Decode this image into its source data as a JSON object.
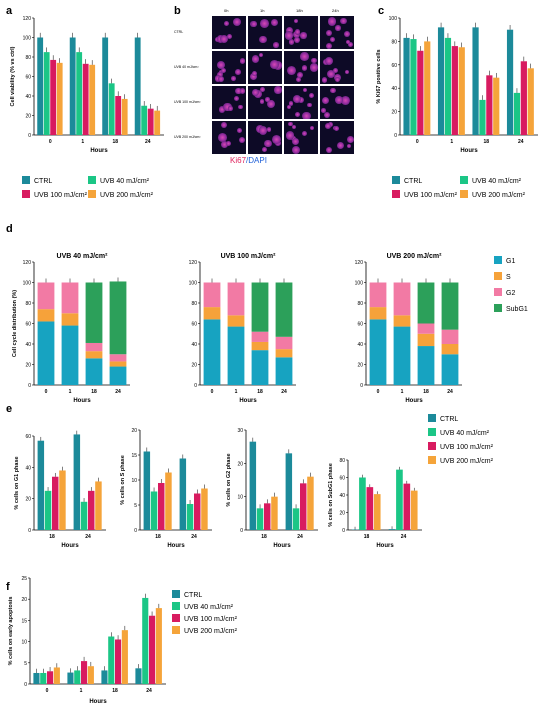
{
  "colors": {
    "ctrl": "#1c8a9a",
    "uvb40": "#1bc686",
    "uvb100": "#d81b60",
    "uvb200": "#f5a43a",
    "g1": "#17a3c1",
    "s": "#f6a23a",
    "g2": "#f27aa4",
    "subg1": "#2ca05a"
  },
  "legend_ctrl_uvb": [
    "CTRL",
    "UVB 40 mJ/cm²",
    "UVB 100 mJ/cm²",
    "UVB 200 mJ/cm²"
  ],
  "panel_labels": {
    "a": "a",
    "b": "b",
    "c": "c",
    "d": "d",
    "e": "e",
    "f": "f"
  },
  "panel_b": {
    "time_labels": [
      "0h",
      "1h",
      "18h",
      "24h"
    ],
    "row_labels": [
      "CTRL",
      "UVB 40 mJ/cm²",
      "UVB 100 mJ/cm²",
      "UVB 200 mJ/cm²"
    ],
    "stain_ki67": "Ki67",
    "stain_dapi": "/DAPI"
  },
  "chart_data": [
    {
      "id": "a",
      "type": "bar",
      "ylabel": "Cell viability (% vs ctrl)",
      "xlabel": "Hours",
      "categories": [
        "0",
        "1",
        "18",
        "24"
      ],
      "ylim": [
        0,
        120
      ],
      "yticks": [
        0,
        20,
        40,
        60,
        80,
        100,
        120
      ],
      "series": [
        {
          "name": "CTRL",
          "values": [
            100,
            100,
            100,
            100
          ]
        },
        {
          "name": "UVB 40 mJ/cm²",
          "values": [
            85,
            85,
            53,
            30
          ]
        },
        {
          "name": "UVB 100 mJ/cm²",
          "values": [
            77,
            73,
            40,
            27
          ]
        },
        {
          "name": "UVB 200 mJ/cm²",
          "values": [
            74,
            72,
            37,
            25
          ]
        }
      ],
      "annotations": [
        "**",
        "**",
        "*",
        "**",
        "**",
        "***",
        "***",
        "***",
        "***",
        "***",
        "***",
        "***",
        "***",
        "°°"
      ]
    },
    {
      "id": "c",
      "type": "bar",
      "ylabel": "% Ki67 positive cells",
      "xlabel": "Hours",
      "categories": [
        "0",
        "1",
        "18",
        "24"
      ],
      "ylim": [
        0,
        100
      ],
      "yticks": [
        0,
        20,
        40,
        60,
        80,
        100
      ],
      "series": [
        {
          "name": "CTRL",
          "values": [
            83,
            92,
            92,
            90
          ]
        },
        {
          "name": "UVB 40 mJ/cm²",
          "values": [
            82,
            83,
            30,
            36
          ]
        },
        {
          "name": "UVB 100 mJ/cm²",
          "values": [
            72,
            76,
            51,
            63
          ]
        },
        {
          "name": "UVB 200 mJ/cm²",
          "values": [
            80,
            75,
            49,
            57
          ]
        }
      ],
      "annotations": [
        "*",
        "*",
        "***",
        "***",
        "***",
        "***",
        "***",
        "***",
        "°°",
        "°°°",
        "°°°"
      ]
    },
    {
      "id": "d",
      "type": "bar",
      "stacked": true,
      "ylabel": "Cell cycle distribution (%)",
      "xlabel": "Hours",
      "categories": [
        "0",
        "1",
        "18",
        "24"
      ],
      "ylim": [
        0,
        120
      ],
      "yticks": [
        0,
        20,
        40,
        60,
        80,
        100,
        120
      ],
      "legend": [
        "G1",
        "S",
        "G2",
        "SubG1"
      ],
      "subcharts": [
        {
          "title": "UVB 40 mJ/cm²",
          "series": [
            {
              "name": "G1",
              "values": [
                62,
                58,
                26,
                18
              ]
            },
            {
              "name": "S",
              "values": [
                12,
                12,
                7,
                5
              ]
            },
            {
              "name": "G2",
              "values": [
                26,
                30,
                8,
                7
              ]
            },
            {
              "name": "SubG1",
              "values": [
                0,
                0,
                59,
                71
              ]
            }
          ]
        },
        {
          "title": "UVB 100 mJ/cm²",
          "series": [
            {
              "name": "G1",
              "values": [
                64,
                57,
                34,
                27
              ]
            },
            {
              "name": "S",
              "values": [
                12,
                11,
                8,
                8
              ]
            },
            {
              "name": "G2",
              "values": [
                24,
                32,
                10,
                12
              ]
            },
            {
              "name": "SubG1",
              "values": [
                0,
                0,
                48,
                53
              ]
            }
          ]
        },
        {
          "title": "UVB 200 mJ/cm²",
          "series": [
            {
              "name": "G1",
              "values": [
                64,
                57,
                38,
                30
              ]
            },
            {
              "name": "S",
              "values": [
                12,
                11,
                12,
                10
              ]
            },
            {
              "name": "G2",
              "values": [
                24,
                32,
                10,
                14
              ]
            },
            {
              "name": "SubG1",
              "values": [
                0,
                0,
                40,
                46
              ]
            }
          ]
        }
      ]
    },
    {
      "id": "e1",
      "type": "bar",
      "ylabel": "% cells on G1 phase",
      "xlabel": "Hours",
      "categories": [
        "18",
        "24"
      ],
      "ylim": [
        0,
        60
      ],
      "yticks": [
        0,
        20,
        40,
        60
      ],
      "series": [
        {
          "name": "CTRL",
          "values": [
            57,
            61
          ]
        },
        {
          "name": "UVB 40 mJ/cm²",
          "values": [
            25,
            18
          ]
        },
        {
          "name": "UVB 100 mJ/cm²",
          "values": [
            34,
            25
          ]
        },
        {
          "name": "UVB 200 mJ/cm²",
          "values": [
            38,
            31
          ]
        }
      ],
      "annotations": [
        "***",
        "***",
        "***",
        "***",
        "***",
        "***",
        "°°",
        "°°"
      ]
    },
    {
      "id": "e2",
      "type": "bar",
      "ylabel": "% cells on S phase",
      "xlabel": "Hours",
      "categories": [
        "18",
        "24"
      ],
      "ylim": [
        0,
        20
      ],
      "yticks": [
        0,
        5,
        10,
        15,
        20
      ],
      "series": [
        {
          "name": "CTRL",
          "values": [
            15.7,
            14.3
          ]
        },
        {
          "name": "UVB 40 mJ/cm²",
          "values": [
            7.7,
            5.2
          ]
        },
        {
          "name": "UVB 100 mJ/cm²",
          "values": [
            9.4,
            7.3
          ]
        },
        {
          "name": "UVB 200 mJ/cm²",
          "values": [
            11.5,
            8.3
          ]
        }
      ],
      "annotations": [
        "**",
        "*",
        "**",
        "**",
        "*"
      ]
    },
    {
      "id": "e3",
      "type": "bar",
      "ylabel": "% cells on G2 phase",
      "xlabel": "Hours",
      "categories": [
        "18",
        "24"
      ],
      "ylim": [
        0,
        30
      ],
      "yticks": [
        0,
        10,
        20,
        30
      ],
      "series": [
        {
          "name": "CTRL",
          "values": [
            26.5,
            23
          ]
        },
        {
          "name": "UVB 40 mJ/cm²",
          "values": [
            6.5,
            6.5
          ]
        },
        {
          "name": "UVB 100 mJ/cm²",
          "values": [
            8,
            14
          ]
        },
        {
          "name": "UVB 200 mJ/cm²",
          "values": [
            10,
            16
          ]
        }
      ],
      "annotations": [
        "***",
        "***",
        "***",
        "***",
        "**",
        "*",
        "°",
        "°°"
      ]
    },
    {
      "id": "e4",
      "type": "bar",
      "ylabel": "% cells on SubG1 phase",
      "xlabel": "Hours",
      "categories": [
        "18",
        "24"
      ],
      "ylim": [
        0,
        80
      ],
      "yticks": [
        0,
        20,
        40,
        60,
        80
      ],
      "series": [
        {
          "name": "CTRL",
          "values": [
            0.5,
            1
          ]
        },
        {
          "name": "UVB 40 mJ/cm²",
          "values": [
            60,
            69
          ]
        },
        {
          "name": "UVB 100 mJ/cm²",
          "values": [
            49,
            53
          ]
        },
        {
          "name": "UVB 200 mJ/cm²",
          "values": [
            41,
            45
          ]
        }
      ],
      "annotations": [
        "***",
        "***",
        "***",
        "***",
        "***",
        "***",
        "°",
        "°°",
        "°°",
        "°°°"
      ]
    },
    {
      "id": "f",
      "type": "bar",
      "ylabel": "% cells on early apoptosis",
      "xlabel": "Hours",
      "categories": [
        "0",
        "1",
        "18",
        "24"
      ],
      "ylim": [
        0,
        25
      ],
      "yticks": [
        0,
        5,
        10,
        15,
        20,
        25
      ],
      "series": [
        {
          "name": "CTRL",
          "values": [
            2.6,
            2.7,
            3.2,
            3.7
          ]
        },
        {
          "name": "UVB 40 mJ/cm²",
          "values": [
            2.6,
            3.2,
            11.2,
            20.3
          ]
        },
        {
          "name": "UVB 100 mJ/cm²",
          "values": [
            3.0,
            5.4,
            10.5,
            16.1
          ]
        },
        {
          "name": "UVB 200 mJ/cm²",
          "values": [
            3.9,
            4.2,
            12.7,
            17.9
          ]
        }
      ],
      "annotations": [
        "***",
        "***",
        "***",
        "***",
        "***",
        "***"
      ]
    }
  ]
}
